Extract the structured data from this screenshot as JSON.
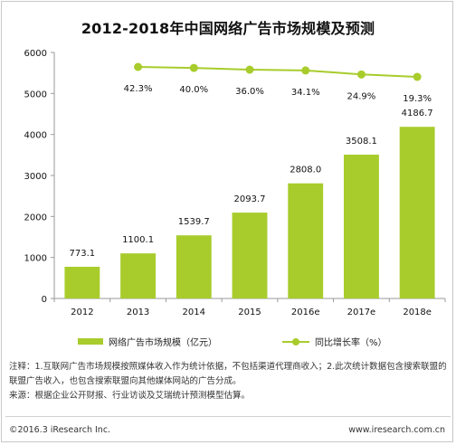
{
  "title": "2012-2018年中国网络广告市场规模及预测",
  "chart_data": {
    "type": "bar",
    "categories": [
      "2012",
      "2013",
      "2014",
      "2015",
      "2016e",
      "2017e",
      "2018e"
    ],
    "series": [
      {
        "name": "网络广告市场规模（亿元）",
        "type": "bar",
        "values": [
          773.1,
          1100.1,
          1539.7,
          2093.7,
          2808.0,
          3508.1,
          4186.7
        ],
        "labels": [
          "773.1",
          "1100.1",
          "1539.7",
          "2093.7",
          "2808.0",
          "3508.1",
          "4186.7"
        ]
      },
      {
        "name": "同比增长率（%）",
        "type": "line",
        "values": [
          null,
          42.3,
          40.0,
          36.0,
          34.1,
          24.9,
          19.3
        ],
        "labels": [
          "",
          "42.3%",
          "40.0%",
          "36.0%",
          "34.1%",
          "24.9%",
          "19.3%"
        ]
      }
    ],
    "ylim": [
      0,
      6000
    ],
    "yticks": [
      "0",
      "1000",
      "2000",
      "3000",
      "4000",
      "5000",
      "6000"
    ],
    "grid": false,
    "legend": "bottom",
    "colors": {
      "bar": "#a8cc2c",
      "line": "#a8cc2c",
      "axis": "#9a9a9a"
    }
  },
  "notes": [
    "注释：1.互联网广告市场规模按照媒体收入作为统计依据，不包括渠道代理商收入；2.此次统计数据包含搜索联盟的联盟广告收入，也包含搜索联盟向其他媒体网站的广告分成。",
    "来源：根据企业公开财报、行业访谈及艾瑞统计预测模型估算。"
  ],
  "footer": {
    "copyright": "©2016.3 iResearch Inc.",
    "website": "www.iresearch.com.cn"
  }
}
